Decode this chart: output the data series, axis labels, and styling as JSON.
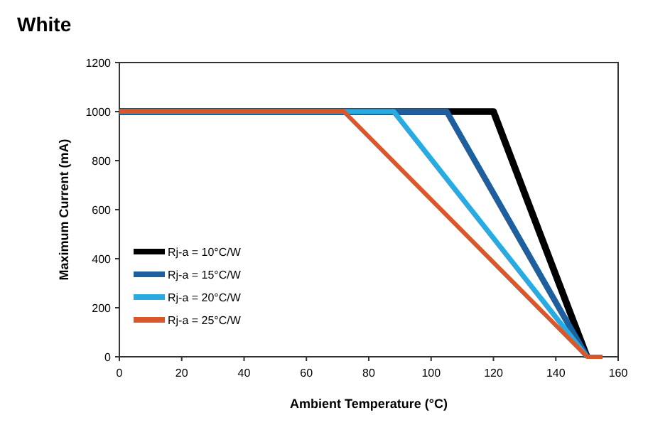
{
  "chart_data": {
    "type": "line",
    "title": "White",
    "xlabel": "Ambient Temperature (°C)",
    "ylabel": "Maximum Current (mA)",
    "xlim": [
      0,
      160
    ],
    "ylim": [
      0,
      1200
    ],
    "xticks": [
      0,
      20,
      40,
      60,
      80,
      100,
      120,
      140,
      160
    ],
    "yticks": [
      0,
      200,
      400,
      600,
      800,
      1000,
      1200
    ],
    "grid": false,
    "legend": "bottom left",
    "marker": "none",
    "line_style": "solid",
    "series": [
      {
        "name": "Rj-a = 10°C/W",
        "color": "#000000",
        "x": [
          0,
          120,
          150
        ],
        "values": [
          1000,
          1000,
          0
        ]
      },
      {
        "name": "Rj-a = 15°C/W",
        "color": "#1f5f9e",
        "x": [
          0,
          105,
          150
        ],
        "values": [
          1000,
          1000,
          0
        ]
      },
      {
        "name": "Rj-a = 20°C/W",
        "color": "#29abe2",
        "x": [
          0,
          88,
          150
        ],
        "values": [
          1000,
          1000,
          0
        ]
      },
      {
        "name": "Rj-a = 25°C/W",
        "color": "#d9582b",
        "x": [
          0,
          72,
          150,
          155
        ],
        "values": [
          1000,
          1000,
          0,
          0
        ]
      }
    ]
  }
}
